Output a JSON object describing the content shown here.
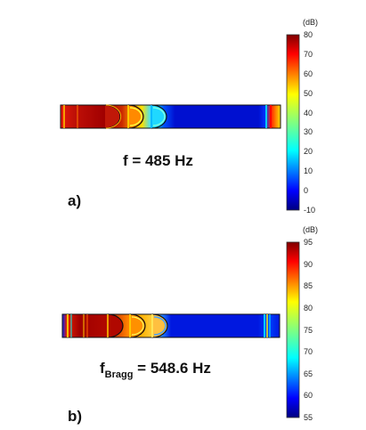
{
  "panels": [
    {
      "id": "a",
      "label": "a)",
      "freq_main": "f = 485 Hz",
      "colorbar": {
        "unit": "(dB)",
        "min": -10,
        "max": 80,
        "ticks": [
          "80",
          "70",
          "60",
          "50",
          "40",
          "30",
          "20",
          "10",
          "0",
          "-10"
        ]
      }
    },
    {
      "id": "b",
      "label": "b)",
      "freq_symbol": "f",
      "freq_subscript": "Bragg",
      "freq_value": " = 548.6 Hz",
      "colorbar": {
        "unit": "(dB)",
        "min": 55,
        "max": 95,
        "ticks": [
          "95",
          "90",
          "85",
          "80",
          "75",
          "70",
          "65",
          "60",
          "55"
        ]
      }
    }
  ],
  "colors": {
    "jet": [
      "#000080",
      "#0000ff",
      "#0080ff",
      "#00ffff",
      "#80ff80",
      "#ffff00",
      "#ff8000",
      "#ff0000",
      "#800000"
    ]
  }
}
